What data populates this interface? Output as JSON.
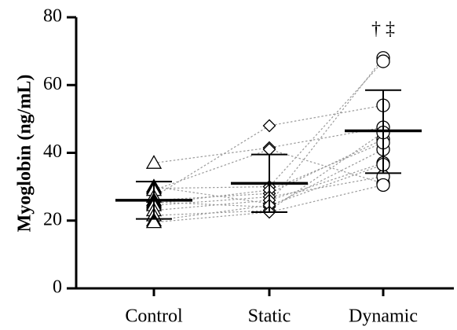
{
  "chart_data": {
    "type": "scatter",
    "ylabel": "Myoglobin (ng/mL)",
    "xlabel": "",
    "categories": [
      "Control",
      "Static",
      "Dynamic"
    ],
    "markers": [
      "triangle",
      "diamond",
      "circle"
    ],
    "ylim": [
      0,
      80
    ],
    "yticks": [
      "0",
      "20",
      "40",
      "60",
      "80"
    ],
    "annotation": {
      "category": "Dynamic",
      "text": "† ‡"
    },
    "subjects": [
      [
        37.0,
        41.5,
        47.5
      ],
      [
        30.0,
        25.0,
        68.0
      ],
      [
        29.5,
        30.0,
        67.0
      ],
      [
        29.0,
        41.0,
        31.0
      ],
      [
        27.0,
        48.0,
        54.0
      ],
      [
        26.0,
        28.0,
        44.0
      ],
      [
        25.5,
        24.0,
        41.0
      ],
      [
        25.0,
        29.0,
        43.0
      ],
      [
        24.5,
        27.0,
        33.0
      ],
      [
        23.0,
        26.0,
        37.0
      ],
      [
        21.5,
        23.0,
        46.0
      ],
      [
        20.0,
        24.5,
        36.5
      ],
      [
        19.5,
        22.5,
        30.5
      ]
    ],
    "summary": [
      {
        "category": "Control",
        "mean": 26.0,
        "sd_low": 20.5,
        "sd_high": 31.5
      },
      {
        "category": "Static",
        "mean": 31.0,
        "sd_low": 22.5,
        "sd_high": 39.5
      },
      {
        "category": "Dynamic",
        "mean": 46.5,
        "sd_low": 34.0,
        "sd_high": 58.5
      }
    ]
  }
}
